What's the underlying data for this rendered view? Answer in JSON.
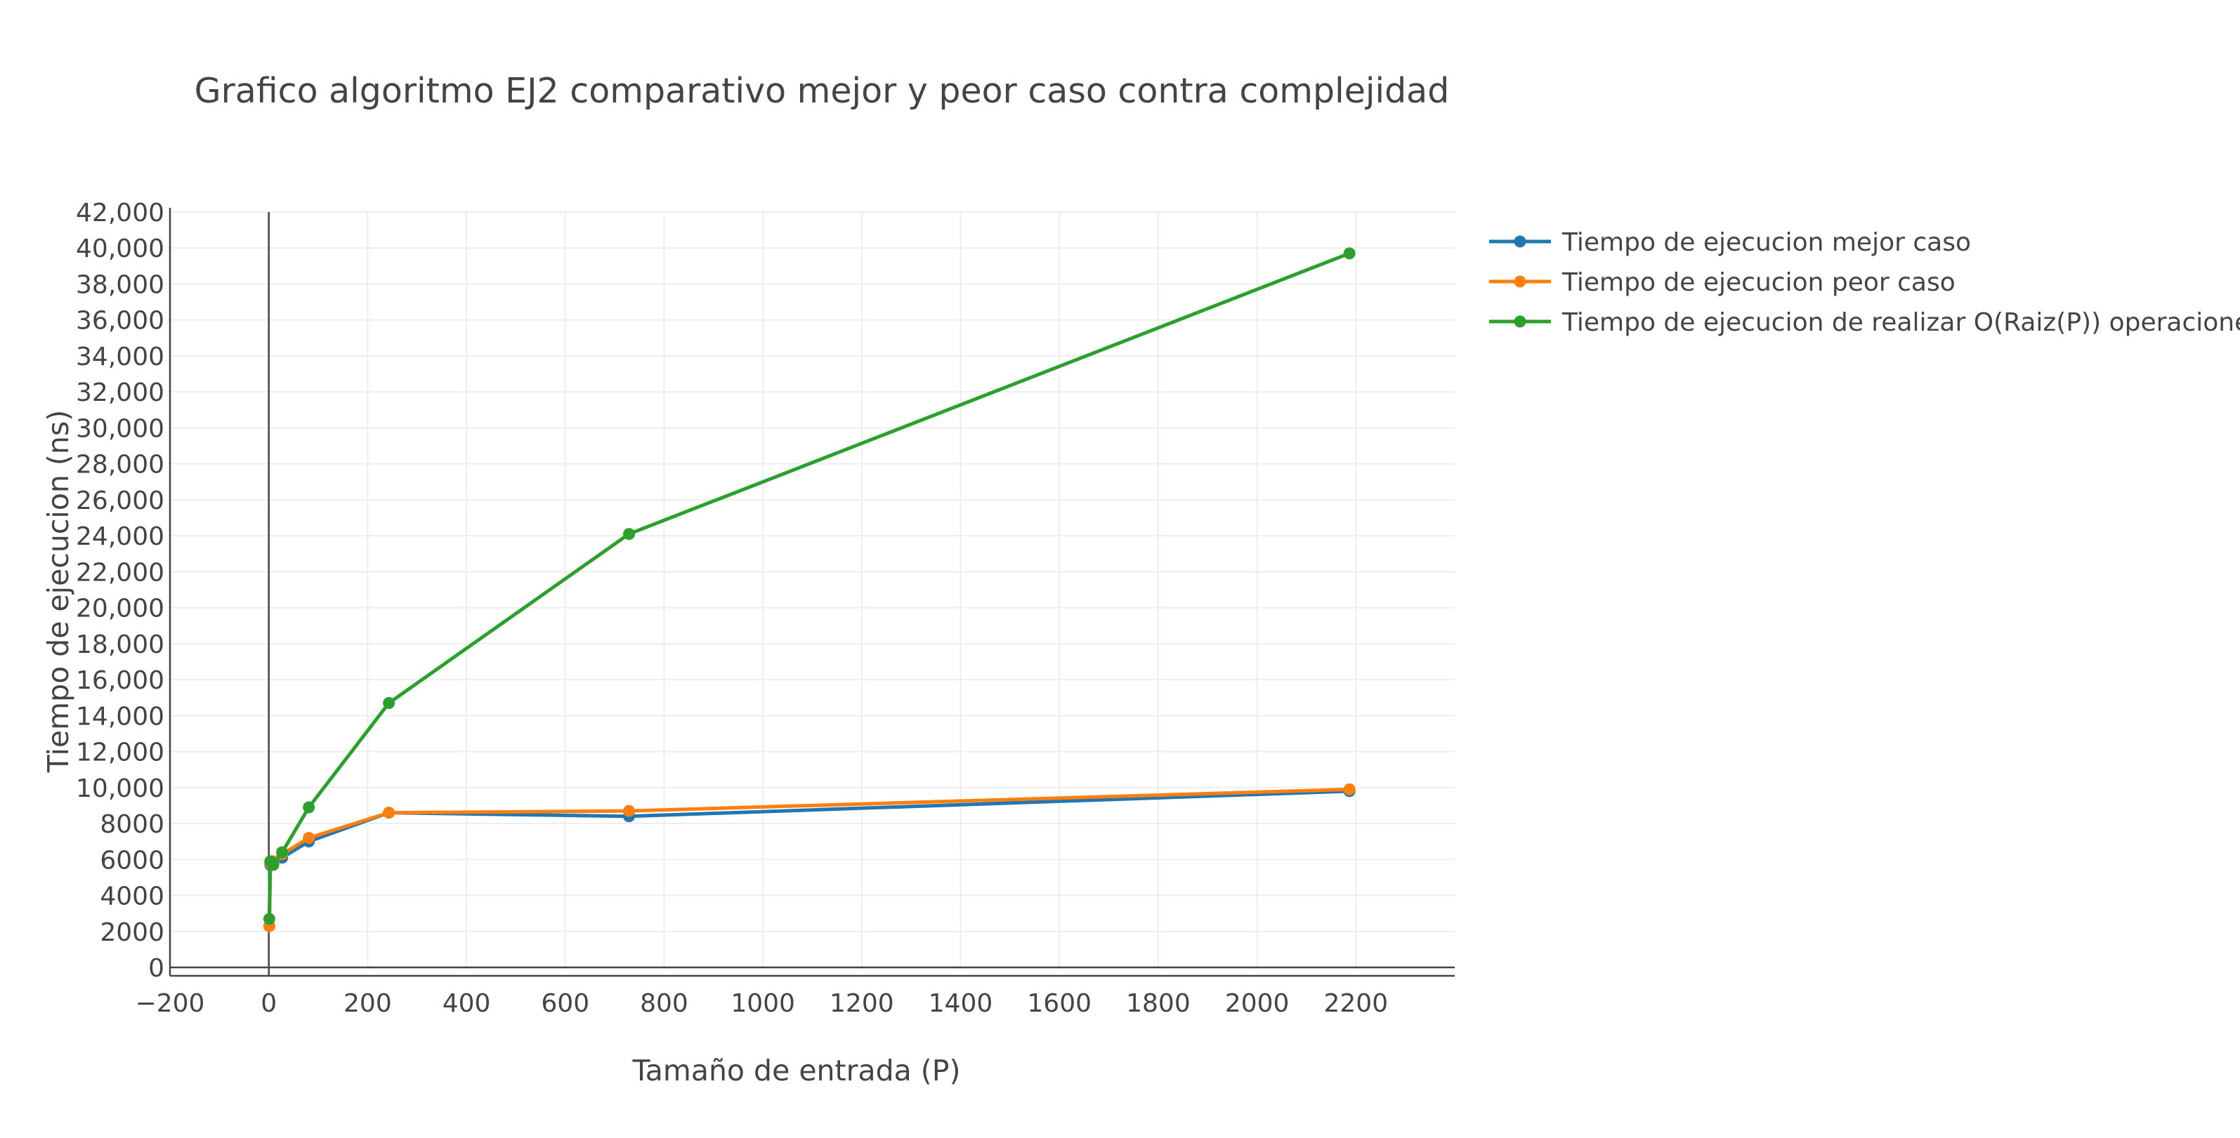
{
  "chart_data": {
    "type": "line",
    "title": "Grafico algoritmo EJ2 comparativo mejor y peor caso contra complejidad",
    "xlabel": "Tamaño de entrada (P)",
    "ylabel": "Tiempo de ejecucion (ns)",
    "xlim": [
      -200,
      2400
    ],
    "ylim": [
      0,
      42000
    ],
    "x_ticks": [
      -200,
      0,
      200,
      400,
      600,
      800,
      1000,
      1200,
      1400,
      1600,
      1800,
      2000,
      2200
    ],
    "x_tick_labels": [
      "−200",
      "0",
      "200",
      "400",
      "600",
      "800",
      "1000",
      "1200",
      "1400",
      "1600",
      "1800",
      "2000",
      "2200"
    ],
    "y_ticks": [
      0,
      2000,
      4000,
      6000,
      8000,
      10000,
      12000,
      14000,
      16000,
      18000,
      20000,
      22000,
      24000,
      26000,
      28000,
      30000,
      32000,
      34000,
      36000,
      38000,
      40000,
      42000
    ],
    "y_tick_labels": [
      "0",
      "2000",
      "4000",
      "6000",
      "8000",
      "10,000",
      "12,000",
      "14,000",
      "16,000",
      "18,000",
      "20,000",
      "22,000",
      "24,000",
      "26,000",
      "28,000",
      "30,000",
      "32,000",
      "34,000",
      "36,000",
      "38,000",
      "40,000",
      "42,000"
    ],
    "grid": true,
    "legend_position": "top-right, outside plot area",
    "series": [
      {
        "name": "Tiempo de ejecucion mejor caso",
        "color": "#1f77b4",
        "x": [
          1,
          3,
          9,
          27,
          81,
          243,
          729,
          2187
        ],
        "y": [
          2300,
          5700,
          5800,
          6100,
          7000,
          8600,
          8400,
          9800
        ]
      },
      {
        "name": "Tiempo de ejecucion peor caso",
        "color": "#ff7f0e",
        "x": [
          1,
          3,
          9,
          27,
          81,
          243,
          729,
          2187
        ],
        "y": [
          2300,
          5800,
          5900,
          6300,
          7200,
          8600,
          8700,
          9900
        ]
      },
      {
        "name": "Tiempo de ejecucion de realizar O(Raiz(P)) operaciones",
        "color": "#2ca02c",
        "x": [
          1,
          3,
          9,
          27,
          81,
          243,
          729,
          2187
        ],
        "y": [
          2700,
          5900,
          5700,
          6400,
          8900,
          14700,
          24100,
          39700
        ]
      }
    ]
  }
}
